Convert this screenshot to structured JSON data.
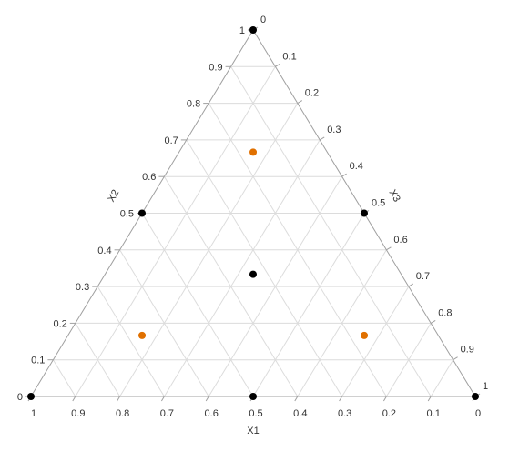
{
  "chart_data": {
    "type": "scatter",
    "subtype": "ternary",
    "axes": {
      "x1": {
        "label": "X1"
      },
      "x2": {
        "label": "X2"
      },
      "x3": {
        "label": "X3"
      }
    },
    "ticks": {
      "x1": [
        "1",
        "0.9",
        "0.8",
        "0.7",
        "0.6",
        "0.5",
        "0.4",
        "0.3",
        "0.2",
        "0.1",
        "0"
      ],
      "x2": [
        "0",
        "0.1",
        "0.2",
        "0.3",
        "0.4",
        "0.5",
        "0.6",
        "0.7",
        "0.8",
        "0.9",
        "1"
      ],
      "x3": [
        "0",
        "0.1",
        "0.2",
        "0.3",
        "0.4",
        "0.5",
        "0.6",
        "0.7",
        "0.8",
        "0.9",
        "1"
      ]
    },
    "grid": true,
    "grid_step": 0.1,
    "points": [
      {
        "x1": 1,
        "x2": 0,
        "x3": 0,
        "color": "#000000"
      },
      {
        "x1": 0,
        "x2": 1,
        "x3": 0,
        "color": "#000000"
      },
      {
        "x1": 0,
        "x2": 0,
        "x3": 1,
        "color": "#000000"
      },
      {
        "x1": 0.5,
        "x2": 0.5,
        "x3": 0,
        "color": "#000000"
      },
      {
        "x1": 0.5,
        "x2": 0,
        "x3": 0.5,
        "color": "#000000"
      },
      {
        "x1": 0,
        "x2": 0.5,
        "x3": 0.5,
        "color": "#000000"
      },
      {
        "x1": 0.3333,
        "x2": 0.3333,
        "x3": 0.3333,
        "color": "#000000"
      },
      {
        "x1": 0.1667,
        "x2": 0.6667,
        "x3": 0.1667,
        "color": "#e07000"
      },
      {
        "x1": 0.6667,
        "x2": 0.1667,
        "x3": 0.1667,
        "color": "#e07000"
      },
      {
        "x1": 0.1667,
        "x2": 0.1667,
        "x3": 0.6667,
        "color": "#e07000"
      }
    ]
  }
}
